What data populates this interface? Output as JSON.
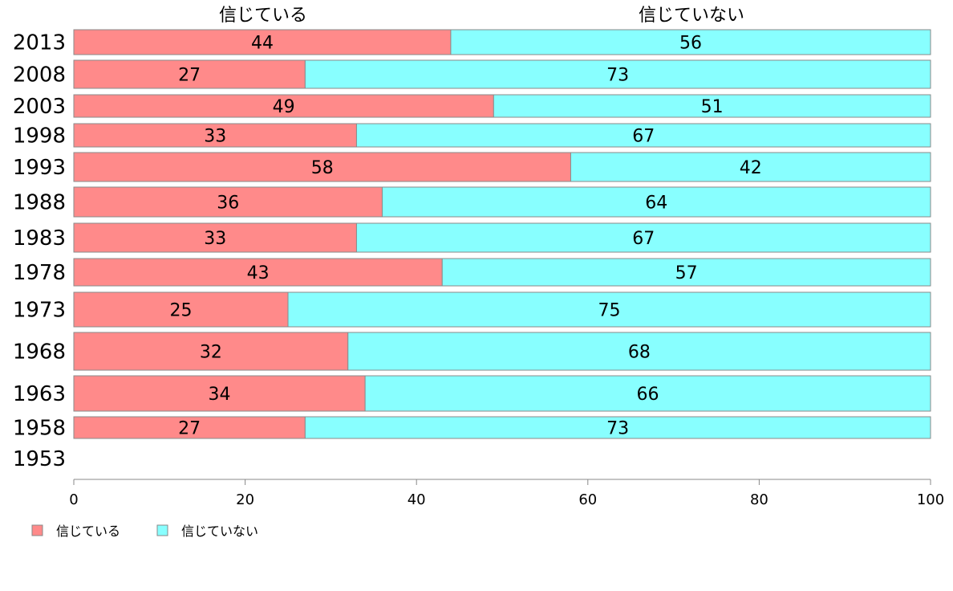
{
  "chart_data": {
    "type": "bar",
    "orientation": "horizontal",
    "stacked": true,
    "categories": [
      "2013",
      "2008",
      "2003",
      "1998",
      "1993",
      "1988",
      "1983",
      "1978",
      "1973",
      "1968",
      "1963",
      "1958",
      "1953"
    ],
    "series": [
      {
        "name": "信じている",
        "color": "#ff8a8a",
        "values": [
          44,
          27,
          49,
          33,
          58,
          36,
          33,
          43,
          25,
          32,
          34,
          27,
          null
        ]
      },
      {
        "name": "信じていない",
        "color": "#88ffff",
        "values": [
          56,
          73,
          51,
          67,
          42,
          64,
          67,
          57,
          75,
          68,
          66,
          73,
          null
        ]
      }
    ],
    "top_labels": [
      "信じている",
      "信じていない"
    ],
    "xlim": [
      0,
      100
    ],
    "xticks": [
      0,
      20,
      40,
      60,
      80,
      100
    ],
    "grid": false,
    "legend": {
      "position": "bottom-left",
      "entries": [
        "信じている",
        "信じていない"
      ]
    }
  }
}
